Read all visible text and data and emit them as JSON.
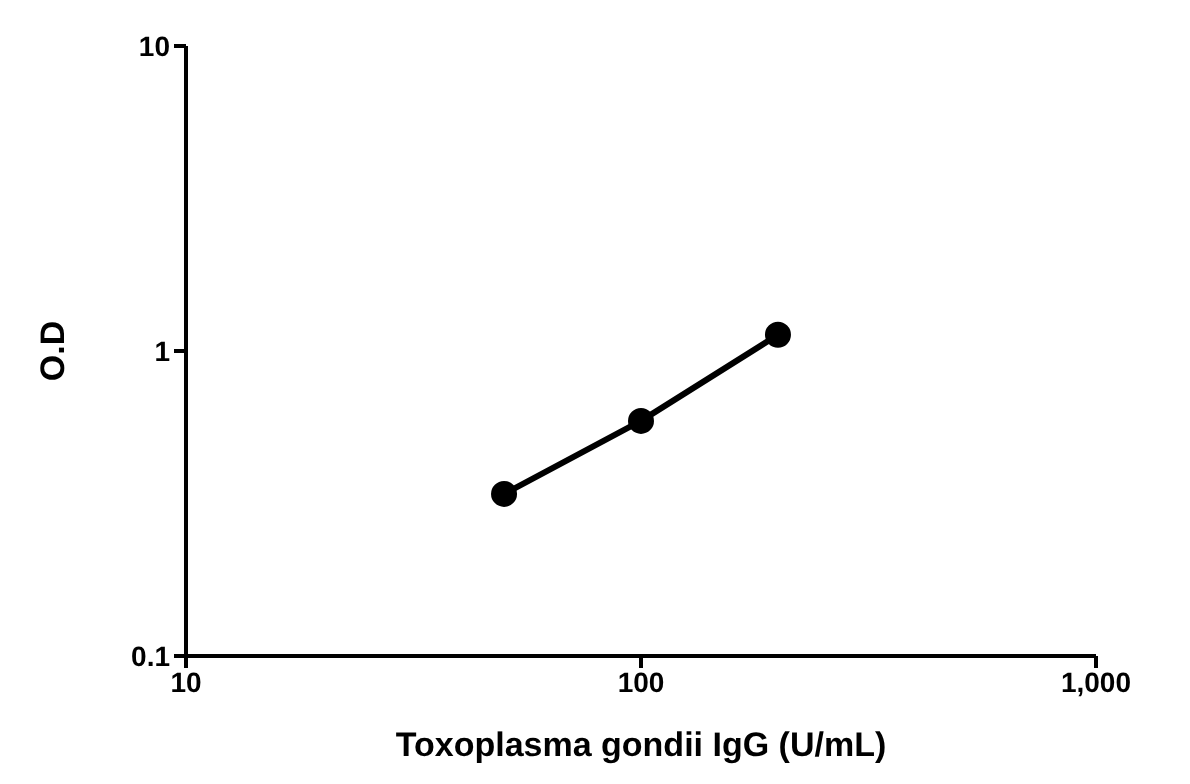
{
  "chart_data": {
    "type": "line",
    "xlabel": "Toxoplasma gondii IgG (U/mL)",
    "ylabel": "O.D",
    "x": [
      50,
      100,
      200
    ],
    "values": [
      0.34,
      0.59,
      1.13
    ],
    "color": "#000000",
    "marker": "circle",
    "line_style": "solid",
    "log": "xy",
    "grid": false,
    "legend": false,
    "xlim": [
      10,
      1000
    ],
    "xticks": [
      10,
      100,
      {
        "value": 1000,
        "label": "1,000"
      }
    ],
    "ylim": [
      0.1,
      10
    ],
    "yticks": [
      0.1,
      1,
      10
    ]
  }
}
